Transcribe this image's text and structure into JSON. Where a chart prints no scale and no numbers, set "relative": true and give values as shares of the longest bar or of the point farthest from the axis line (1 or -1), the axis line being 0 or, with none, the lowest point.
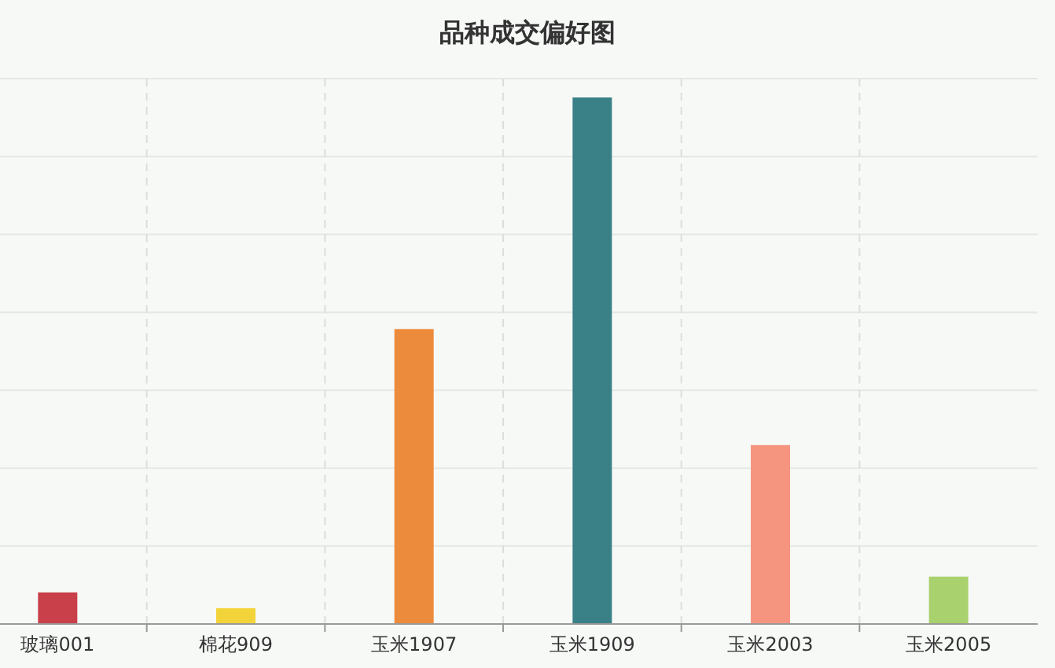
{
  "chart_data": {
    "type": "bar",
    "title": "品种成交偏好图",
    "categories": [
      "玻璃001",
      "棉花909",
      "玉米1907",
      "玉米1909",
      "玉米2003",
      "玉米2005"
    ],
    "values": [
      0.06,
      0.03,
      0.56,
      1,
      0.34,
      0.09
    ],
    "colors": [
      "#c9404a",
      "#f2d43a",
      "#ed8b3c",
      "#3a8087",
      "#f59580",
      "#a9d16e"
    ],
    "relative": true,
    "grid": true
  }
}
